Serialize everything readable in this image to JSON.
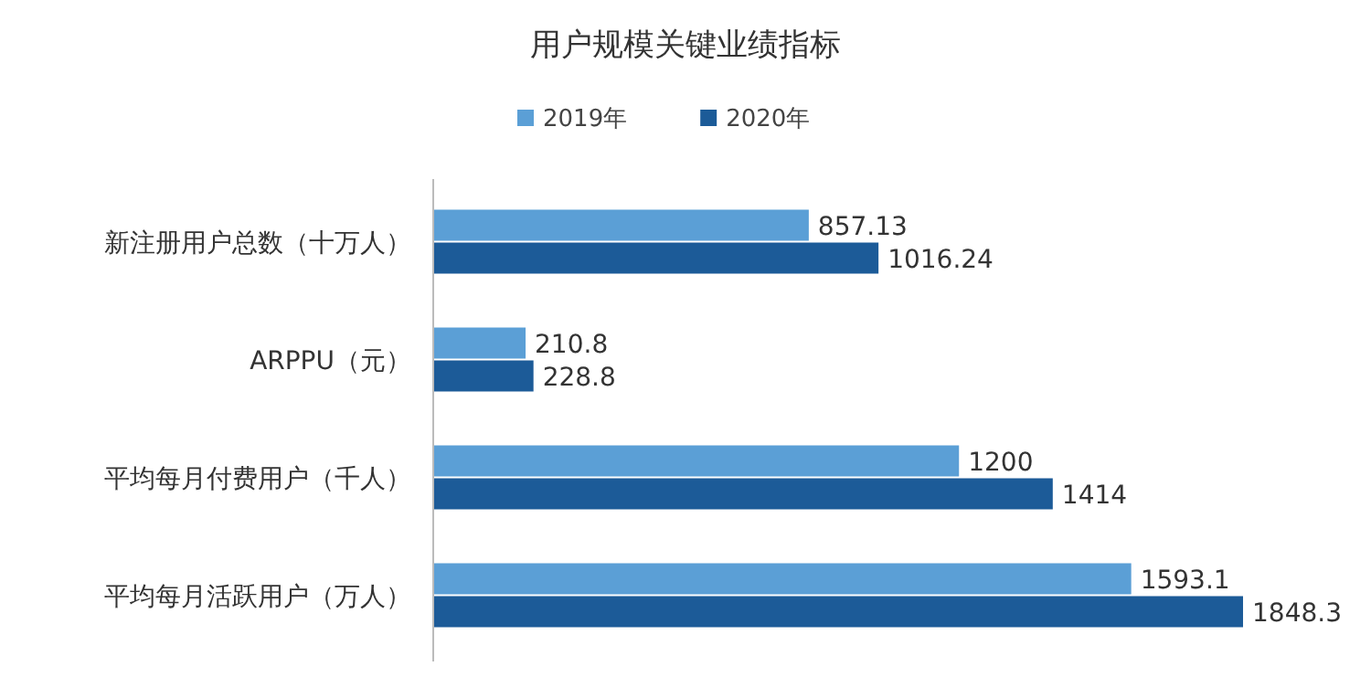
{
  "chart_data": {
    "type": "bar",
    "orientation": "horizontal",
    "title": "用户规模关键业绩指标",
    "categories": [
      "新注册用户总数（十万人）",
      "ARPPU（元）",
      "平均每月付费用户（千人）",
      "平均每月活跃用户（万人）"
    ],
    "series": [
      {
        "name": "2019年",
        "color": "#5b9fd6",
        "values": [
          857.13,
          210.8,
          1200,
          1593.1
        ]
      },
      {
        "name": "2020年",
        "color": "#1c5b98",
        "values": [
          1016.24,
          228.8,
          1414,
          1848.3
        ]
      }
    ],
    "data_labels": true,
    "legend": "top"
  }
}
